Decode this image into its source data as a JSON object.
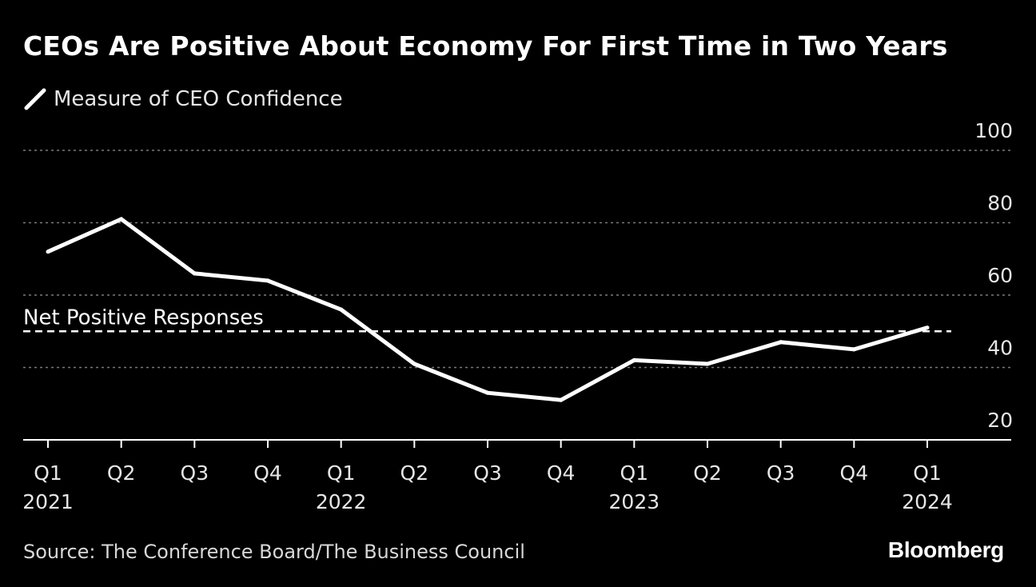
{
  "chart_data": {
    "type": "line",
    "title": "CEOs Are Positive About Economy For First Time in Two Years",
    "series": [
      {
        "name": "Measure of CEO Confidence",
        "color": "#ffffff",
        "values": [
          72,
          81,
          66,
          64,
          56,
          41,
          33,
          31,
          42,
          41,
          47,
          45,
          51
        ]
      }
    ],
    "categories": [
      {
        "quarter": "Q1",
        "year": "2021"
      },
      {
        "quarter": "Q2",
        "year": ""
      },
      {
        "quarter": "Q3",
        "year": ""
      },
      {
        "quarter": "Q4",
        "year": ""
      },
      {
        "quarter": "Q1",
        "year": "2022"
      },
      {
        "quarter": "Q2",
        "year": ""
      },
      {
        "quarter": "Q3",
        "year": ""
      },
      {
        "quarter": "Q4",
        "year": ""
      },
      {
        "quarter": "Q1",
        "year": "2023"
      },
      {
        "quarter": "Q2",
        "year": ""
      },
      {
        "quarter": "Q3",
        "year": ""
      },
      {
        "quarter": "Q4",
        "year": ""
      },
      {
        "quarter": "Q1",
        "year": "2024"
      }
    ],
    "y_axis": {
      "ticks": [
        100,
        80,
        60,
        40,
        20
      ],
      "ylim": [
        20,
        100
      ],
      "position": "right",
      "grid": true
    },
    "reference_line": {
      "label": "Net Positive Responses",
      "value": 50,
      "style": "dashed"
    },
    "legend_position": "top-left",
    "xlabel": "",
    "ylabel": ""
  },
  "source": "Source: The Conference Board/The Business Council",
  "brand": "Bloomberg",
  "colors": {
    "background": "#000000",
    "line": "#ffffff",
    "grid": "#7a7a7a",
    "axis": "#ffffff",
    "tick_text": "#e6e6e6"
  }
}
